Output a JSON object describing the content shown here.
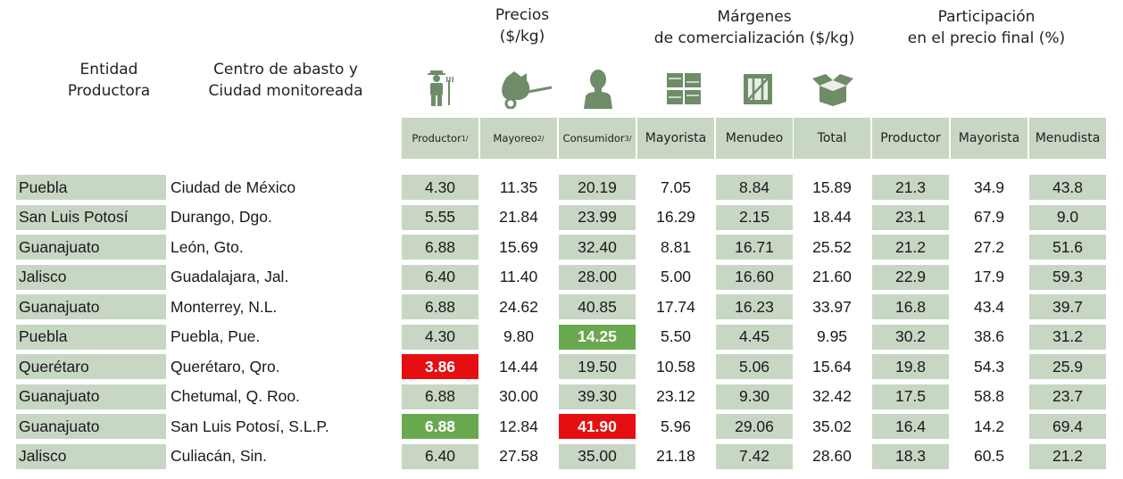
{
  "headers": {
    "entidad": "Entidad\nProductora",
    "centro": "Centro de abasto y\nCiudad monitoreada",
    "precios": "Precios\n($/kg)",
    "margenes": "Márgenes\nde comercialización ($/kg)",
    "participacion": "Participación\nen el precio final (%)"
  },
  "icons": [
    "farmer-icon",
    "wheelbarrow-sack-icon",
    "consumer-icon",
    "crates-icon",
    "crate-icon",
    "open-box-icon"
  ],
  "columns": [
    {
      "label": "Productor",
      "sup": "1/"
    },
    {
      "label": "Mayoreo",
      "sup": "2/"
    },
    {
      "label": "Consumidor",
      "sup": "3/"
    },
    {
      "label": "Mayorista",
      "sup": ""
    },
    {
      "label": "Menudeo",
      "sup": ""
    },
    {
      "label": "Total",
      "sup": ""
    },
    {
      "label": "Productor",
      "sup": ""
    },
    {
      "label": "Mayorista",
      "sup": ""
    },
    {
      "label": "Menudista",
      "sup": ""
    }
  ],
  "rows": [
    {
      "entidad": "Puebla",
      "centro": "Ciudad de México",
      "values": [
        "4.30",
        "11.35",
        "20.19",
        "7.05",
        "8.84",
        "15.89",
        "21.3",
        "34.9",
        "43.8"
      ]
    },
    {
      "entidad": "San Luis Potosí",
      "centro": "Durango, Dgo.",
      "values": [
        "5.55",
        "21.84",
        "23.99",
        "16.29",
        "2.15",
        "18.44",
        "23.1",
        "67.9",
        "9.0"
      ]
    },
    {
      "entidad": "Guanajuato",
      "centro": "León, Gto.",
      "values": [
        "6.88",
        "15.69",
        "32.40",
        "8.81",
        "16.71",
        "25.52",
        "21.2",
        "27.2",
        "51.6"
      ]
    },
    {
      "entidad": "Jalisco",
      "centro": "Guadalajara, Jal.",
      "values": [
        "6.40",
        "11.40",
        "28.00",
        "5.00",
        "16.60",
        "21.60",
        "22.9",
        "17.9",
        "59.3"
      ]
    },
    {
      "entidad": "Guanajuato",
      "centro": "Monterrey, N.L.",
      "values": [
        "6.88",
        "24.62",
        "40.85",
        "17.74",
        "16.23",
        "33.97",
        "16.8",
        "43.4",
        "39.7"
      ]
    },
    {
      "entidad": "Puebla",
      "centro": "Puebla, Pue.",
      "values": [
        "4.30",
        "9.80",
        "14.25",
        "5.50",
        "4.45",
        "9.95",
        "30.2",
        "38.6",
        "31.2"
      ]
    },
    {
      "entidad": "Querétaro",
      "centro": "Querétaro, Qro.",
      "values": [
        "3.86",
        "14.44",
        "19.50",
        "10.58",
        "5.06",
        "15.64",
        "19.8",
        "54.3",
        "25.9"
      ]
    },
    {
      "entidad": "Guanajuato",
      "centro": "Chetumal, Q. Roo.",
      "values": [
        "6.88",
        "30.00",
        "39.30",
        "23.12",
        "9.30",
        "32.42",
        "17.5",
        "58.8",
        "23.7"
      ]
    },
    {
      "entidad": "Guanajuato",
      "centro": "San Luis Potosí, S.L.P.",
      "values": [
        "6.88",
        "12.84",
        "41.90",
        "5.96",
        "29.06",
        "35.02",
        "16.4",
        "14.2",
        "69.4"
      ]
    },
    {
      "entidad": "Jalisco",
      "centro": "Culiacán, Sin.",
      "values": [
        "6.40",
        "27.58",
        "35.00",
        "21.18",
        "7.42",
        "28.60",
        "18.3",
        "60.5",
        "21.2"
      ]
    }
  ],
  "highlights": [
    {
      "row": 6,
      "col": 0,
      "color": "red"
    },
    {
      "row": 5,
      "col": 2,
      "color": "green"
    },
    {
      "row": 8,
      "col": 0,
      "color": "green"
    },
    {
      "row": 8,
      "col": 2,
      "color": "red"
    }
  ],
  "colors": {
    "band": "#c8d6c4",
    "icon": "#6e8c68",
    "red": "#e50f12",
    "green": "#6aa84f"
  }
}
